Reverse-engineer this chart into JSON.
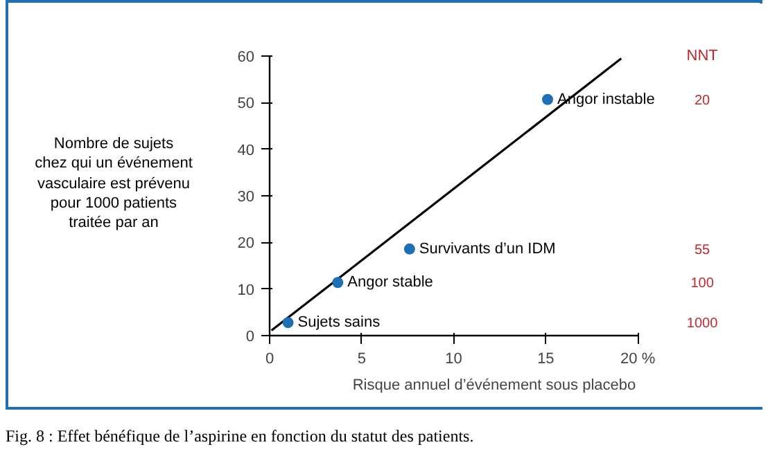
{
  "chart_data": {
    "type": "scatter",
    "title": "Fig. 8 : Effet bénéfique de l’aspirine en fonction du statut des patients.",
    "xlabel": "Risque annuel d’événement sous placebo",
    "ylabel": "Nombre de sujets\nchez qui un événement\nvasculaire est  prévenu\npour 1000 patients\ntraitée par an",
    "xlim": [
      0,
      20
    ],
    "ylim": [
      0,
      60
    ],
    "xticks": [
      0,
      5,
      10,
      15,
      {
        "value": 20,
        "label": "20 %"
      }
    ],
    "yticks": [
      0,
      10,
      20,
      30,
      40,
      50,
      60
    ],
    "grid": false,
    "marker": "circle",
    "series": [
      {
        "type": "line",
        "color": "#000000",
        "x": [
          0.1,
          19.1
        ],
        "values": [
          1.1,
          59.5
        ],
        "line_style": "solid",
        "marker": "none"
      },
      {
        "color": "#1f6fb5",
        "x": [
          1.0,
          3.7,
          7.6,
          15.1
        ],
        "values": [
          2.8,
          11.4,
          18.6,
          50.7
        ]
      }
    ],
    "annotations": [
      "NNT",
      "20",
      "55",
      "100",
      "1000",
      {
        "text": "Sujets sains",
        "x": 1.0,
        "y": 2.8
      },
      {
        "text": "Angor stable",
        "x": 3.7,
        "y": 11.4
      },
      {
        "text": "Survivants d’un IDM",
        "x": 7.6,
        "y": 18.6
      },
      {
        "text": "Angor instable",
        "x": 15.1,
        "y": 50.7
      }
    ]
  }
}
